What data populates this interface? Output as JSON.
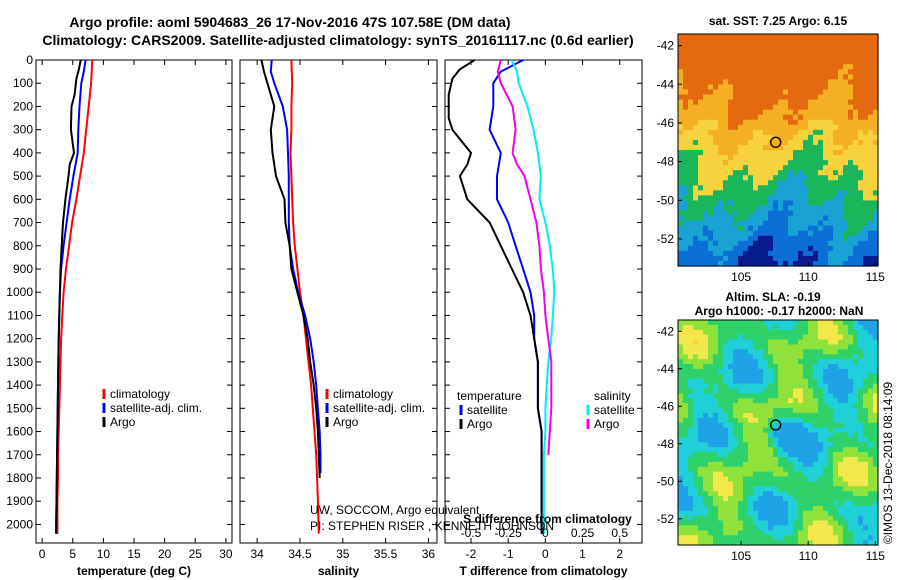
{
  "title_line1": "Argo profile: aoml 5904683_26 17-Nov-2016 47S 107.58E (DM data)",
  "title_line2": "Climatology: CARS2009. Satellite-adjusted climatology: synTS_20161117.nc (0.6d earlier)",
  "side_credit": "©IMOS 13-Dec-2018 08:14:09",
  "credits": [
    "UW, SOCCOM, Argo equivalent",
    "PI: STEPHEN RISER , KENNETH JOHNSON"
  ],
  "colors": {
    "climatology": "#ff0000",
    "satellite": "#0000ff",
    "argo": "#000000",
    "salinity_sat": "#00eeee",
    "salinity_argo": "#ee00ee"
  },
  "chart_data": [
    {
      "type": "line",
      "xlabel": "temperature (deg C)",
      "ylabel": "",
      "xlim": [
        -1,
        31
      ],
      "ylim": [
        2080,
        0
      ],
      "xticks": [
        "0",
        "5",
        "10",
        "15",
        "20",
        "25",
        "30"
      ],
      "yticks": [
        "0",
        "100",
        "200",
        "300",
        "400",
        "500",
        "600",
        "700",
        "800",
        "900",
        "1000",
        "1100",
        "1200",
        "1300",
        "1400",
        "1500",
        "1600",
        "1700",
        "1800",
        "1900",
        "2000"
      ],
      "legend": [
        "climatology",
        "satellite-adj. clim.",
        "Argo"
      ],
      "series": [
        {
          "name": "climatology",
          "color": "#ff0000",
          "points": [
            [
              8.2,
              0
            ],
            [
              8.0,
              100
            ],
            [
              7.6,
              200
            ],
            [
              7.2,
              300
            ],
            [
              6.8,
              400
            ],
            [
              6.2,
              500
            ],
            [
              5.6,
              600
            ],
            [
              4.9,
              700
            ],
            [
              4.4,
              800
            ],
            [
              3.9,
              900
            ],
            [
              3.5,
              1000
            ],
            [
              3.3,
              1100
            ],
            [
              3.1,
              1200
            ],
            [
              3.0,
              1300
            ],
            [
              2.9,
              1400
            ],
            [
              2.8,
              1500
            ],
            [
              2.7,
              1600
            ],
            [
              2.6,
              1700
            ],
            [
              2.6,
              1800
            ],
            [
              2.5,
              1900
            ],
            [
              2.5,
              2040
            ]
          ]
        },
        {
          "name": "satellite-adj. clim.",
          "color": "#0000ff",
          "points": [
            [
              7.1,
              0
            ],
            [
              6.8,
              50
            ],
            [
              6.4,
              100
            ],
            [
              6.1,
              200
            ],
            [
              5.9,
              300
            ],
            [
              5.8,
              400
            ],
            [
              5.1,
              500
            ],
            [
              4.5,
              600
            ],
            [
              4.0,
              700
            ],
            [
              3.5,
              800
            ],
            [
              3.1,
              900
            ],
            [
              2.9,
              1000
            ],
            [
              2.8,
              1100
            ],
            [
              2.7,
              1200
            ],
            [
              2.6,
              1400
            ],
            [
              2.5,
              1600
            ],
            [
              2.4,
              1800
            ],
            [
              2.3,
              2000
            ],
            [
              2.3,
              2040
            ]
          ]
        },
        {
          "name": "Argo",
          "color": "#000000",
          "points": [
            [
              6.3,
              0
            ],
            [
              6.0,
              40
            ],
            [
              5.6,
              80
            ],
            [
              5.3,
              150
            ],
            [
              4.8,
              200
            ],
            [
              4.7,
              300
            ],
            [
              5.2,
              400
            ],
            [
              4.5,
              450
            ],
            [
              4.3,
              500
            ],
            [
              3.8,
              600
            ],
            [
              3.4,
              700
            ],
            [
              3.2,
              800
            ],
            [
              3.0,
              900
            ],
            [
              2.9,
              1000
            ],
            [
              2.8,
              1100
            ],
            [
              2.7,
              1200
            ],
            [
              2.6,
              1400
            ],
            [
              2.5,
              1600
            ],
            [
              2.4,
              1800
            ],
            [
              2.3,
              2000
            ],
            [
              2.3,
              2040
            ]
          ]
        }
      ]
    },
    {
      "type": "line",
      "xlabel": "salinity",
      "ylabel": "",
      "xlim": [
        33.8,
        36.1
      ],
      "ylim": [
        2080,
        0
      ],
      "xticks": [
        "34",
        "34.5",
        "35",
        "35.5",
        "36"
      ],
      "legend": [
        "climatology",
        "satellite-adj. clim.",
        "Argo"
      ],
      "series": [
        {
          "name": "climatology",
          "color": "#ff0000",
          "points": [
            [
              34.4,
              0
            ],
            [
              34.41,
              100
            ],
            [
              34.4,
              200
            ],
            [
              34.4,
              300
            ],
            [
              34.39,
              400
            ],
            [
              34.4,
              500
            ],
            [
              34.41,
              600
            ],
            [
              34.42,
              700
            ],
            [
              34.44,
              800
            ],
            [
              34.47,
              900
            ],
            [
              34.5,
              1000
            ],
            [
              34.54,
              1100
            ],
            [
              34.57,
              1200
            ],
            [
              34.6,
              1300
            ],
            [
              34.63,
              1400
            ],
            [
              34.65,
              1500
            ],
            [
              34.67,
              1600
            ],
            [
              34.69,
              1700
            ],
            [
              34.7,
              1800
            ],
            [
              34.71,
              1900
            ],
            [
              34.72,
              2040
            ]
          ]
        },
        {
          "name": "satellite-adj. clim.",
          "color": "#0000ff",
          "points": [
            [
              34.17,
              0
            ],
            [
              34.16,
              50
            ],
            [
              34.2,
              100
            ],
            [
              34.3,
              200
            ],
            [
              34.35,
              300
            ],
            [
              34.36,
              400
            ],
            [
              34.37,
              500
            ],
            [
              34.37,
              600
            ],
            [
              34.37,
              700
            ],
            [
              34.38,
              800
            ],
            [
              34.42,
              900
            ],
            [
              34.48,
              1000
            ],
            [
              34.56,
              1100
            ],
            [
              34.62,
              1200
            ],
            [
              34.66,
              1300
            ],
            [
              34.69,
              1400
            ],
            [
              34.71,
              1500
            ],
            [
              34.73,
              1600
            ],
            [
              34.74,
              1700
            ],
            [
              34.74,
              1780
            ]
          ]
        },
        {
          "name": "Argo",
          "color": "#000000",
          "points": [
            [
              34.05,
              0
            ],
            [
              34.08,
              50
            ],
            [
              34.12,
              100
            ],
            [
              34.2,
              200
            ],
            [
              34.16,
              300
            ],
            [
              34.18,
              400
            ],
            [
              34.22,
              500
            ],
            [
              34.32,
              600
            ],
            [
              34.33,
              700
            ],
            [
              34.38,
              800
            ],
            [
              34.4,
              900
            ],
            [
              34.47,
              1000
            ],
            [
              34.54,
              1100
            ],
            [
              34.59,
              1200
            ],
            [
              34.62,
              1300
            ],
            [
              34.66,
              1400
            ],
            [
              34.69,
              1500
            ],
            [
              34.71,
              1600
            ],
            [
              34.72,
              1700
            ],
            [
              34.73,
              1800
            ]
          ]
        }
      ]
    },
    {
      "type": "line",
      "xlabel": "T difference from climatology",
      "ylabel": "",
      "xlim": [
        -2.7,
        2.6
      ],
      "ylim": [
        2080,
        0
      ],
      "xticks": [
        "-2",
        "-1",
        "0",
        "1",
        "2"
      ],
      "top_label": "S difference from climatology",
      "top_xlim": [
        -0.675,
        0.65
      ],
      "top_xticks": [
        "-0.5",
        "-0.25",
        "0",
        "0.25",
        "0.5"
      ],
      "legend_left_title": "temperature",
      "legend_right_title": "salinity",
      "legend": [
        "satellite",
        "Argo",
        "satellite",
        "Argo"
      ],
      "series": [
        {
          "name": "satellite",
          "group": "temperature",
          "color": "#0000ff",
          "points": [
            [
              -0.6,
              0
            ],
            [
              -1.2,
              50
            ],
            [
              -1.4,
              100
            ],
            [
              -1.4,
              200
            ],
            [
              -1.5,
              300
            ],
            [
              -1.2,
              400
            ],
            [
              -1.3,
              500
            ],
            [
              -1.3,
              600
            ],
            [
              -1.0,
              700
            ],
            [
              -0.8,
              800
            ],
            [
              -0.6,
              900
            ],
            [
              -0.4,
              1000
            ],
            [
              -0.3,
              1100
            ],
            [
              -0.3,
              1200
            ],
            [
              -0.2,
              1300
            ],
            [
              -0.2,
              1400
            ],
            [
              -0.2,
              1500
            ],
            [
              -0.1,
              1600
            ],
            [
              -0.1,
              1700
            ],
            [
              -0.1,
              1800
            ],
            [
              -0.1,
              1900
            ],
            [
              -0.1,
              2040
            ]
          ]
        },
        {
          "name": "Argo",
          "group": "temperature",
          "color": "#000000",
          "points": [
            [
              -1.9,
              0
            ],
            [
              -2.3,
              40
            ],
            [
              -2.5,
              80
            ],
            [
              -2.6,
              150
            ],
            [
              -2.6,
              250
            ],
            [
              -2.5,
              300
            ],
            [
              -2.0,
              400
            ],
            [
              -2.1,
              450
            ],
            [
              -2.3,
              500
            ],
            [
              -2.1,
              600
            ],
            [
              -1.5,
              700
            ],
            [
              -1.2,
              800
            ],
            [
              -0.9,
              900
            ],
            [
              -0.6,
              1000
            ],
            [
              -0.4,
              1100
            ],
            [
              -0.3,
              1200
            ],
            [
              -0.2,
              1300
            ],
            [
              -0.2,
              1400
            ],
            [
              -0.2,
              1500
            ],
            [
              -0.1,
              1600
            ],
            [
              -0.1,
              1700
            ],
            [
              -0.1,
              1800
            ],
            [
              -0.1,
              1900
            ],
            [
              -0.1,
              2040
            ]
          ]
        },
        {
          "name": "satellite",
          "group": "salinity",
          "color": "#00eeee",
          "points": [
            [
              -0.23,
              0
            ],
            [
              -0.19,
              50
            ],
            [
              -0.18,
              100
            ],
            [
              -0.12,
              200
            ],
            [
              -0.08,
              300
            ],
            [
              -0.05,
              400
            ],
            [
              -0.03,
              500
            ],
            [
              -0.04,
              600
            ],
            [
              0.0,
              700
            ],
            [
              0.03,
              800
            ],
            [
              0.05,
              900
            ],
            [
              0.06,
              1000
            ],
            [
              0.05,
              1100
            ],
            [
              0.04,
              1200
            ],
            [
              0.02,
              1300
            ],
            [
              0.01,
              1400
            ],
            [
              0.0,
              1500
            ],
            [
              0.0,
              1600
            ],
            [
              -0.01,
              1700
            ],
            [
              -0.01,
              1800
            ],
            [
              -0.01,
              1900
            ],
            [
              -0.01,
              2040
            ]
          ]
        },
        {
          "name": "Argo",
          "group": "salinity",
          "color": "#ee00ee",
          "points": [
            [
              -0.3,
              0
            ],
            [
              -0.32,
              50
            ],
            [
              -0.3,
              100
            ],
            [
              -0.22,
              200
            ],
            [
              -0.2,
              300
            ],
            [
              -0.22,
              400
            ],
            [
              -0.19,
              450
            ],
            [
              -0.14,
              500
            ],
            [
              -0.1,
              600
            ],
            [
              -0.06,
              700
            ],
            [
              -0.04,
              800
            ],
            [
              -0.03,
              900
            ],
            [
              -0.01,
              1000
            ],
            [
              0.0,
              1100
            ],
            [
              0.02,
              1200
            ],
            [
              0.04,
              1300
            ],
            [
              0.04,
              1400
            ],
            [
              0.04,
              1500
            ],
            [
              0.03,
              1600
            ],
            [
              0.02,
              1700
            ]
          ]
        }
      ]
    },
    {
      "type": "heatmap",
      "title": "sat. SST: 7.25 Argo: 6.15",
      "xlim": [
        100.3,
        115.2
      ],
      "ylim": [
        -53.4,
        -41.4
      ],
      "xticks": [
        "105",
        "110",
        "115"
      ],
      "yticks": [
        "-42",
        "-44",
        "-46",
        "-48",
        "-50",
        "-52"
      ],
      "marker": {
        "lon": 107.58,
        "lat": -47.0
      },
      "color_bands": [
        "#e36a0e",
        "#f4b022",
        "#f7d23c",
        "#1bb55a",
        "#18a3d4",
        "#0b6fd6",
        "#081c8e"
      ]
    },
    {
      "type": "heatmap",
      "title": "Altim. SLA: -0.19",
      "subtitle": "Argo h1000: -0.17 h2000: NaN",
      "xlim": [
        100.3,
        115.2
      ],
      "ylim": [
        -53.4,
        -41.4
      ],
      "xticks": [
        "105",
        "110",
        "115"
      ],
      "yticks": [
        "-42",
        "-44",
        "-46",
        "-48",
        "-50",
        "-52"
      ],
      "marker": {
        "lon": 107.58,
        "lat": -47.0
      },
      "color_bands": [
        "#1fa2e6",
        "#1fd0d8",
        "#2fd26a",
        "#8ee23b",
        "#f3e84a",
        "#ffd23a"
      ]
    }
  ]
}
